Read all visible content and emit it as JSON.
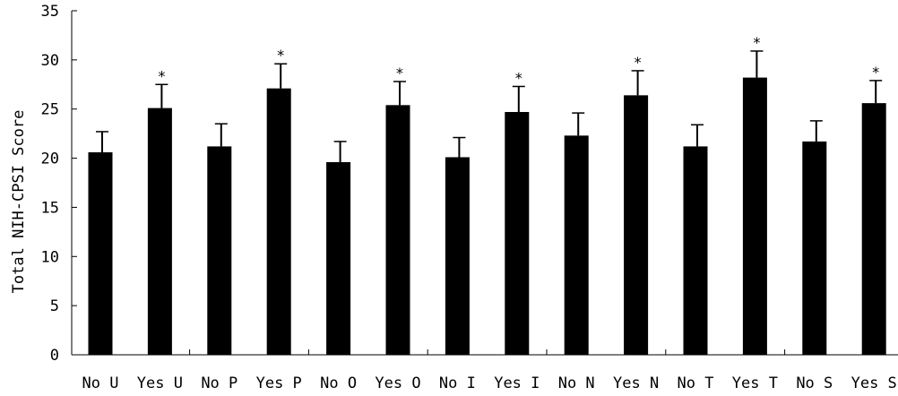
{
  "chart_data": {
    "type": "bar",
    "title": "",
    "xlabel": "",
    "ylabel": "Total NIH-CPSI Score",
    "ylim": [
      0,
      35
    ],
    "yticks": [
      0,
      5,
      10,
      15,
      20,
      25,
      30,
      35
    ],
    "categories": [
      "No U",
      "Yes U",
      "No P",
      "Yes P",
      "No O",
      "Yes O",
      "No I",
      "Yes I",
      "No N",
      "Yes N",
      "No T",
      "Yes T",
      "No S",
      "Yes S"
    ],
    "values": [
      20.6,
      25.1,
      21.2,
      27.1,
      19.6,
      25.4,
      20.1,
      24.7,
      22.3,
      26.4,
      21.2,
      28.2,
      21.7,
      25.6
    ],
    "errors": [
      2.1,
      2.4,
      2.3,
      2.5,
      2.1,
      2.4,
      2.0,
      2.6,
      2.3,
      2.5,
      2.2,
      2.7,
      2.1,
      2.3
    ],
    "significance": [
      "",
      "*",
      "",
      "*",
      "",
      "*",
      "",
      "*",
      "",
      "*",
      "",
      "*",
      "",
      "*"
    ],
    "bar_color": "#000000",
    "grid": false,
    "legend": "none"
  }
}
